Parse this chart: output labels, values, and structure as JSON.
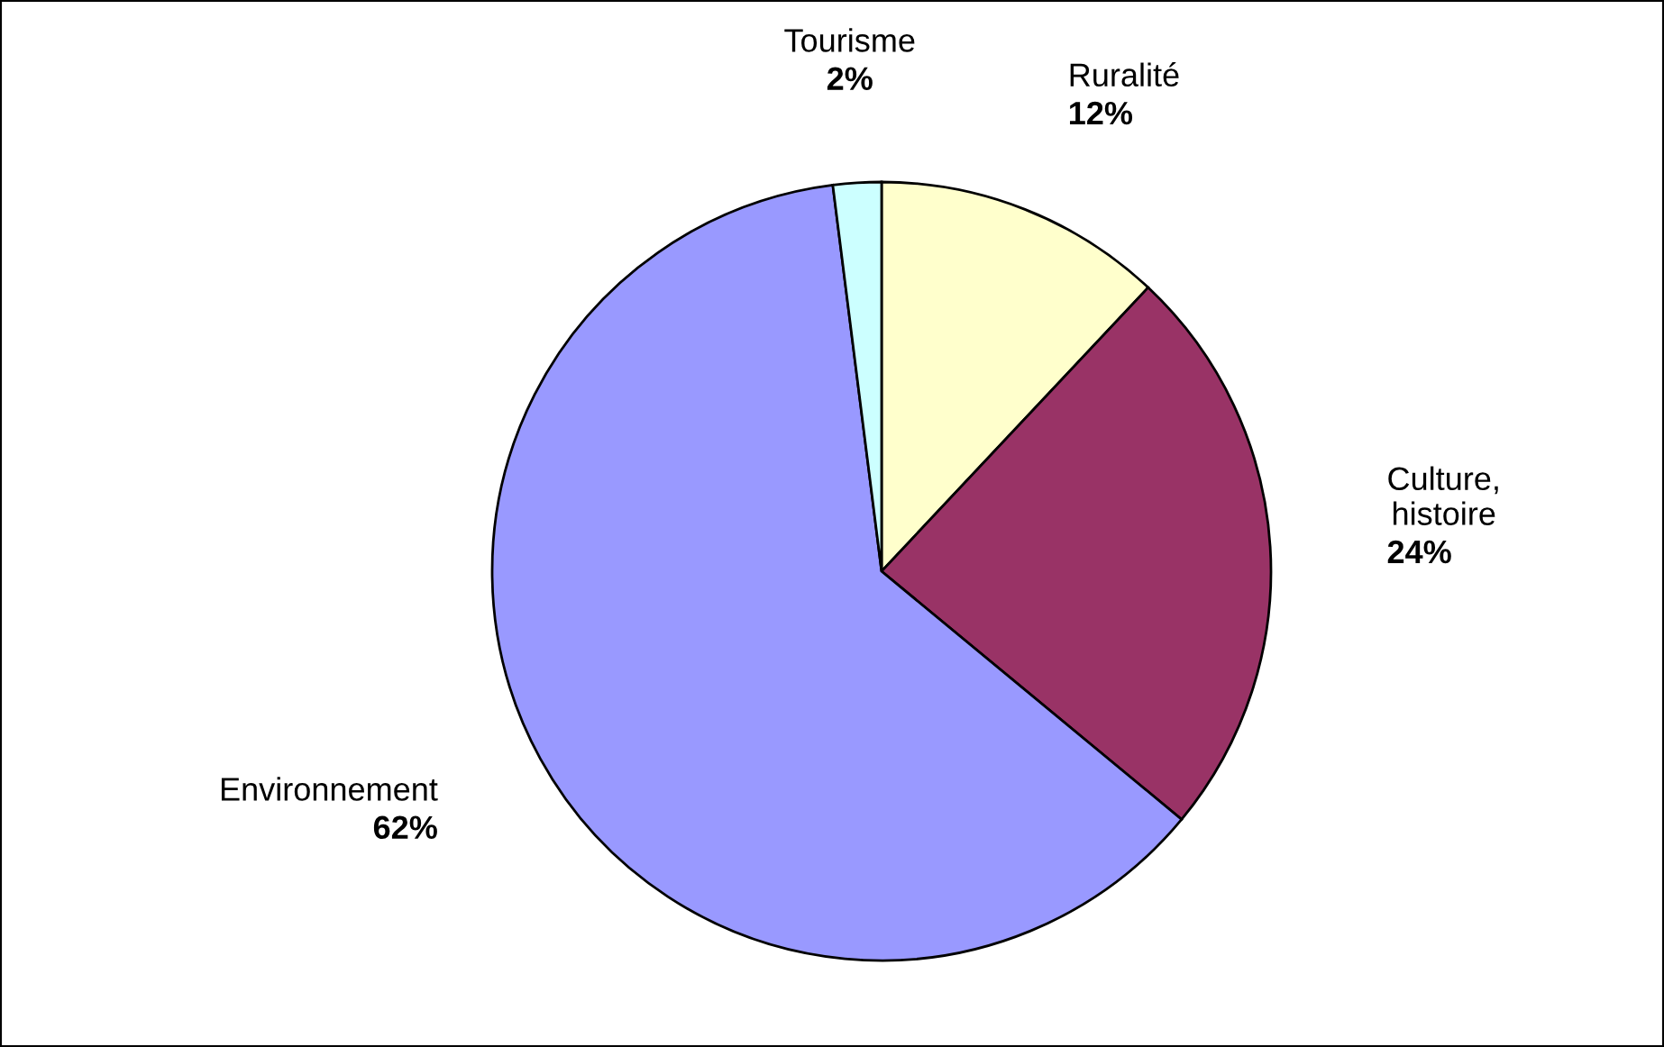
{
  "chart_data": {
    "type": "pie",
    "categories": [
      "Ruralité",
      "Culture, histoire",
      "Environnement",
      "Tourisme"
    ],
    "values": [
      12,
      24,
      62,
      2
    ],
    "colors": [
      "#ffffcc",
      "#993366",
      "#9999ff",
      "#ccffff"
    ],
    "value_labels": [
      "12%",
      "24%",
      "62%",
      "2%"
    ],
    "legend": false
  }
}
